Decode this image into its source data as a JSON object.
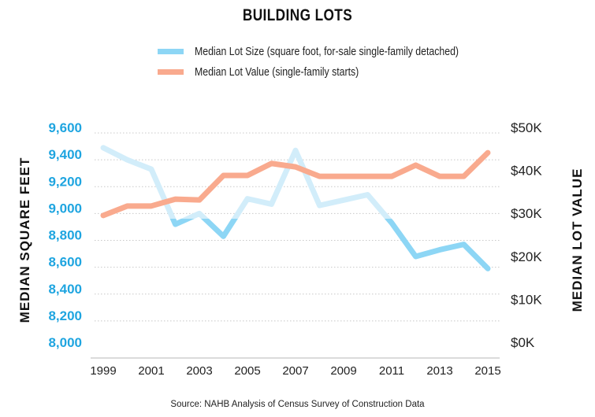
{
  "chart_data": {
    "type": "line",
    "title": "BUILDING LOTS",
    "legend_position": "top-center",
    "source": "Source: NAHB Analysis of Census Survey of Construction Data",
    "x": [
      1999,
      2000,
      2001,
      2002,
      2003,
      2004,
      2005,
      2006,
      2007,
      2008,
      2009,
      2010,
      2011,
      2012,
      2013,
      2014,
      2015
    ],
    "x_tick_labels": [
      "1999",
      "2001",
      "2003",
      "2005",
      "2007",
      "2009",
      "2011",
      "2013",
      "2015"
    ],
    "left_axis": {
      "label": "MEDIAN SQUARE FEET",
      "range": [
        8000,
        9600
      ],
      "tick_labels": [
        "9,600",
        "9,400",
        "9,200",
        "9,000",
        "8,800",
        "8,600",
        "8,400",
        "8,200",
        "8,000"
      ]
    },
    "right_axis": {
      "label": "MEDIAN LOT VALUE",
      "range": [
        0,
        50
      ],
      "tick_labels": [
        "$50K",
        "$40K",
        "$30K",
        "$20K",
        "$10K",
        "$0K"
      ]
    },
    "grid": true,
    "series": [
      {
        "name": "Median Lot Size (square foot, for-sale single-family detached)",
        "axis": "left",
        "color": "#8dd6f5",
        "light_color": "#d2edfa",
        "values": [
          9490,
          9400,
          9330,
          8920,
          9000,
          8830,
          9110,
          9070,
          9470,
          9060,
          9100,
          9140,
          8930,
          8680,
          8730,
          8770,
          8590
        ]
      },
      {
        "name": "Median Lot Value (single-family starts)",
        "axis": "right",
        "color": "#f9aa8e",
        "values": [
          30.8,
          33.0,
          33.0,
          34.6,
          34.4,
          40.1,
          40.1,
          42.9,
          42.1,
          39.9,
          39.9,
          39.9,
          39.9,
          42.5,
          39.9,
          39.9,
          45.4
        ]
      }
    ]
  }
}
